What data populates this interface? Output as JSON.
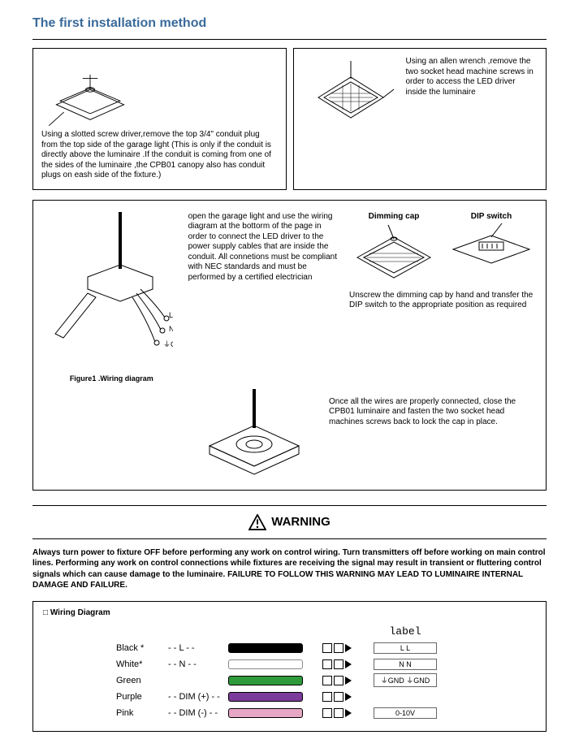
{
  "title": "The first installation method",
  "panels": {
    "p1": {
      "text": "Using a slotted screw driver,remove the top 3/4\" conduit plug from the top side of the garage light (This is only if the conduit is directly above the luminaire .If the conduit is coming from one of the sides of the luminaire ,the CPB01 canopy also has conduit plugs on eash side of the fixture.)"
    },
    "p2": {
      "text": "Using an allen wrench ,remove the two socket head machine screws in order to access the LED driver inside the luminaire"
    },
    "p3": {
      "text": "open the  garage light and use the wiring diagram at the bottorm of the page in order to connect the LED  driver to the  power  supply cables that are inside the conduit. All connetions must be compliant with NEC standards and must be performed by a certified electrician",
      "figure_caption": "Figure1 .Wiring diagram",
      "wire_labels": {
        "L": "L",
        "N": "N",
        "GND": "GND"
      },
      "dimming_cap": "Dimming cap",
      "dip_switch": "DIP switch",
      "dip_text": "Unscrew the dimming cap by hand and transfer the DIP switch to the appropriate position as required",
      "close_text": "Once all the wires are properly connected, close the CPB01 luminaire and fasten the two socket head machines screws back to lock the cap in place."
    }
  },
  "warning": {
    "heading": "WARNING",
    "body": "Always turn power to fixture OFF before performing any work on control wiring. Turn transmitters off before working on main control lines. Performing any work on control connections while fixtures are receiving the signal may result in transient or fluttering control signals which can cause damage to the luminaire. FAILURE TO FOLLOW THIS WARNING MAY LEAD TO LUMINAIRE INTERNAL DAMAGE AND FAILURE."
  },
  "wiring": {
    "section_title": "Wiring Diagram",
    "label_header": "label",
    "rows": [
      {
        "name": "Black *",
        "code": "- - L - -",
        "bar_color": "#000000",
        "out": "L        L"
      },
      {
        "name": "White*",
        "code": "- - N - -",
        "bar_color": "#ffffff",
        "out": "N        N"
      },
      {
        "name": "Green",
        "code": "",
        "bar_color": "#2e9a3a",
        "out": "⏚GND   ⏚GND"
      },
      {
        "name": "Purple",
        "code": "- - DIM (+) - -",
        "bar_color": "#7a3b9a",
        "out": ""
      },
      {
        "name": "Pink",
        "code": "- - DIM (-) - -",
        "bar_color": "#e7a6c4",
        "out": "0-10V"
      }
    ]
  }
}
